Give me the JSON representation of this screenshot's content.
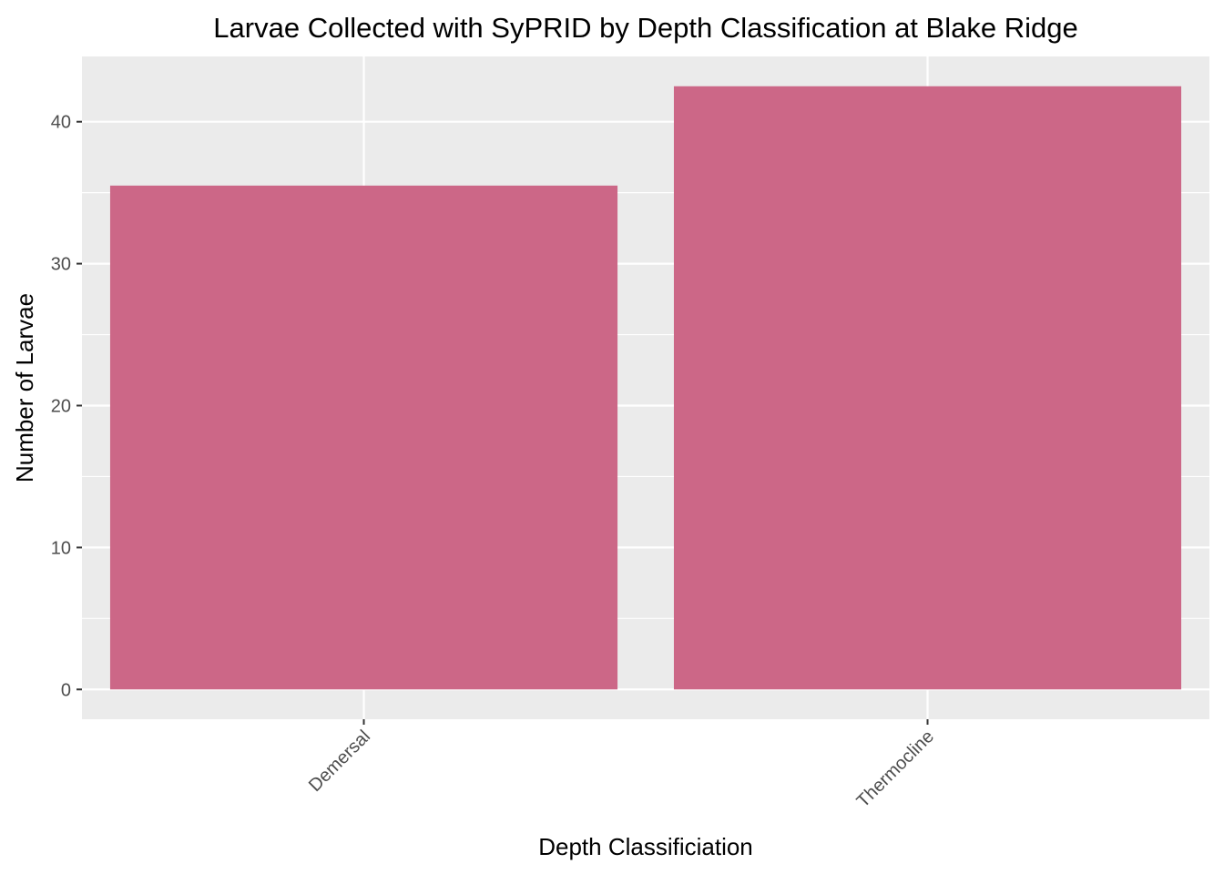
{
  "chart_data": {
    "type": "bar",
    "title": "Larvae Collected with SyPRID by Depth Classification at Blake Ridge",
    "xlabel": "Depth Classificiation",
    "ylabel": "Number of Larvae",
    "categories": [
      "Demersal",
      "Thermocline"
    ],
    "values": [
      35.5,
      42.5
    ],
    "ylim": [
      -2.1,
      44.6
    ],
    "yticks": [
      0,
      10,
      20,
      30,
      40
    ],
    "ytick_labels": [
      "0",
      "10",
      "20",
      "30",
      "40"
    ],
    "grid": true,
    "legend": "none",
    "x_tick_rotation": -45,
    "colors": {
      "bar": "#CC6787",
      "panel": "#EBEBEB",
      "grid": "#FFFFFF",
      "tick_text": "#4D4D4D",
      "tick_mark": "#333333",
      "text": "#000000"
    }
  }
}
